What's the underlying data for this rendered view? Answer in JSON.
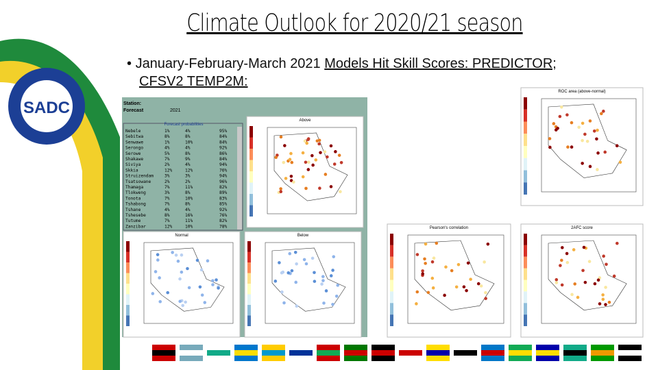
{
  "header": {
    "title": "Climate Outlook for 2020/21 season"
  },
  "bullet": {
    "text": "January-February-March 2021 ",
    "underlined": "Models Hit Skill Scores: PREDICTOR; CFSV2 TEMP2M:"
  },
  "logo": {
    "text": "SADC"
  },
  "station_panel": {
    "station_label": "Station:",
    "forecast_label": "Forecast",
    "year": "2021",
    "table_title": "Forecast probabilities",
    "rows": [
      [
        "Nebele",
        "1%",
        "4%",
        "95%"
      ],
      [
        "Sebitwa",
        "8%",
        "8%",
        "84%"
      ],
      [
        "Senwawe",
        "1%",
        "10%",
        "84%"
      ],
      [
        "Serongo",
        "4%",
        "4%",
        "92%"
      ],
      [
        "Serowe",
        "5%",
        "8%",
        "86%"
      ],
      [
        "Shakawe",
        "7%",
        "9%",
        "84%"
      ],
      [
        "Siviya",
        "2%",
        "4%",
        "94%"
      ],
      [
        "Skkia",
        "12%",
        "12%",
        "76%"
      ],
      [
        "Struizendam",
        "3%",
        "3%",
        "94%"
      ],
      [
        "Tsatsowane",
        "2%",
        "2%",
        "96%"
      ],
      [
        "Thamaga",
        "7%",
        "11%",
        "82%"
      ],
      [
        "Tlokweng",
        "3%",
        "8%",
        "89%"
      ],
      [
        "Tonota",
        "7%",
        "10%",
        "83%"
      ],
      [
        "Tshabong",
        "7%",
        "8%",
        "85%"
      ],
      [
        "Tshane",
        "4%",
        "4%",
        "92%"
      ],
      [
        "Tshesebe",
        "8%",
        "16%",
        "76%"
      ],
      [
        "Tutume",
        "7%",
        "11%",
        "82%"
      ],
      [
        "Zanzibar",
        "12%",
        "10%",
        "78%"
      ]
    ]
  },
  "maps": [
    {
      "title": "Above"
    },
    {
      "title": "Normal"
    },
    {
      "title": "Below"
    },
    {
      "title": "ROC area (above-normal)"
    },
    {
      "title": "Pearson's correlation"
    },
    {
      "title": "2AFC score"
    }
  ]
}
